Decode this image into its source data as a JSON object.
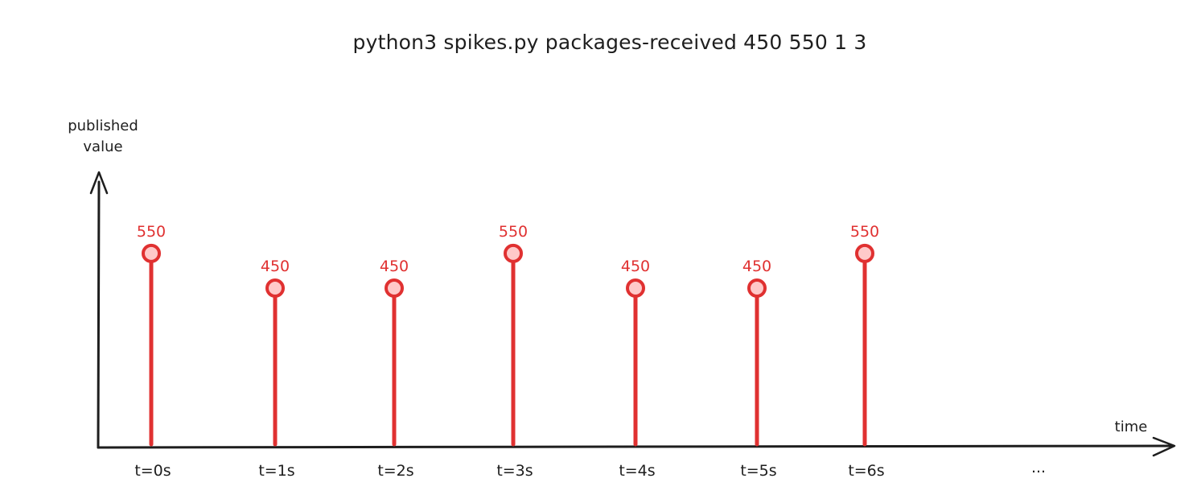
{
  "title": "python3 spikes.py packages-received 450 550 1 3",
  "chart_data": {
    "type": "stem",
    "ylabel_lines": [
      "published",
      "value"
    ],
    "xlabel": "time",
    "categories": [
      "t=0s",
      "t=1s",
      "t=2s",
      "t=3s",
      "t=4s",
      "t=5s",
      "t=6s"
    ],
    "values": [
      550,
      450,
      450,
      550,
      450,
      450,
      550
    ],
    "data_labels": [
      "550",
      "450",
      "450",
      "550",
      "450",
      "450",
      "550"
    ],
    "continuation_label": "...",
    "ylim": [
      0,
      620
    ],
    "grid": false,
    "colors": {
      "stem": "#e03131",
      "marker_fill": "#ffc9c9",
      "axis": "#1e1e1e"
    }
  }
}
